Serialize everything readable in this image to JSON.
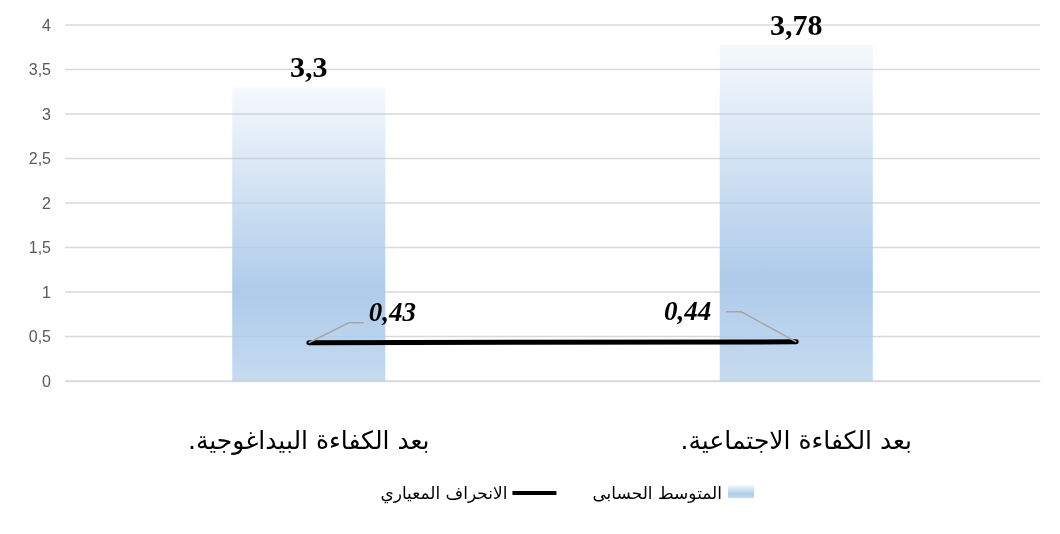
{
  "chart_data": {
    "type": "bar",
    "categories": [
      "بعد الكفاءة البيداغوجية.",
      "بعد الكفاءة الاجتماعية."
    ],
    "series": [
      {
        "name": "المتوسط الحسابى",
        "color": "#aecbea",
        "values": [
          3.3,
          3.78
        ],
        "value_labels": [
          "3,3",
          "3,78"
        ]
      },
      {
        "name": "الانحراف المعياري",
        "type": "line",
        "color": "#000000",
        "values": [
          0.43,
          0.44
        ],
        "value_labels": [
          "0,43",
          "0,44"
        ]
      }
    ],
    "ylim": [
      0,
      4
    ],
    "yticks": [
      0,
      {
        "value": 0.5,
        "label": "0,5"
      },
      1,
      {
        "value": 1.5,
        "label": "1,5"
      },
      2,
      {
        "value": 2.5,
        "label": "2,5"
      },
      3,
      {
        "value": 3.5,
        "label": "3,5"
      },
      4
    ],
    "grid": "y",
    "legend": "bottom"
  }
}
